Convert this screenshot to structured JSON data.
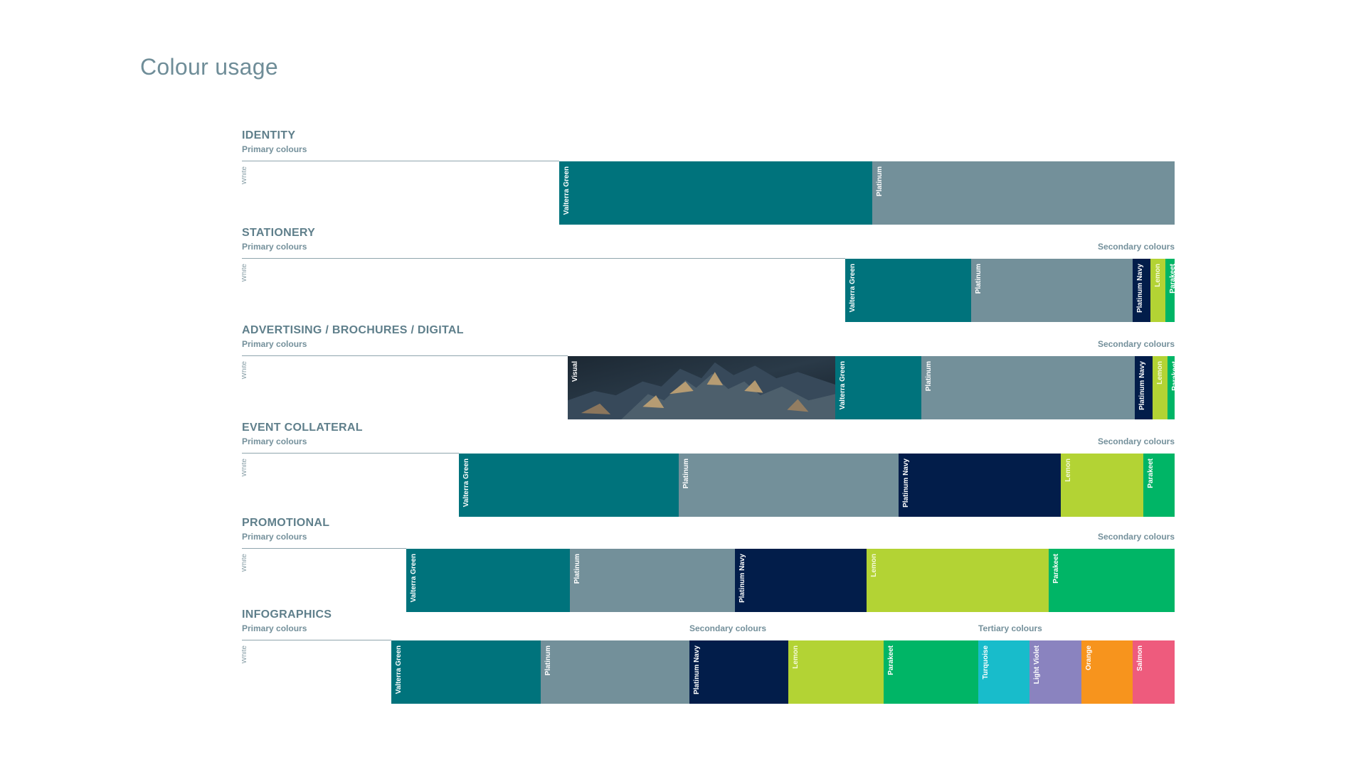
{
  "title": "Colour usage",
  "colors": {
    "white": "#ffffff",
    "valterra_green": "#00737c",
    "platinum": "#73909a",
    "platinum_navy": "#021d4a",
    "lemon": "#b3d334",
    "parakeet": "#00b566",
    "turquoise": "#18bccb",
    "light_violet": "#8a83bf",
    "orange": "#f7941d",
    "salmon": "#ee5b7d"
  },
  "sections": [
    {
      "title": "IDENTITY",
      "primary_label": "Primary colours",
      "segments": [
        {
          "label": "White",
          "color": "#ffffff",
          "share": 0.3401
        },
        {
          "label": "Valterra Green",
          "color": "#00737c",
          "share": 0.3356
        },
        {
          "label": "Platinum",
          "color": "#73909a",
          "share": 0.3243
        }
      ]
    },
    {
      "title": "STATIONERY",
      "primary_label": "Primary colours",
      "secondary_label": "Secondary colours",
      "segments": [
        {
          "label": "White",
          "color": "#ffffff",
          "share": 0.6469
        },
        {
          "label": "Valterra Green",
          "color": "#00737c",
          "share": 0.1352
        },
        {
          "label": "Platinum",
          "color": "#73909a",
          "share": 0.1731
        },
        {
          "label": "Platinum Navy",
          "color": "#021d4a",
          "share": 0.0188
        },
        {
          "label": "Lemon",
          "color": "#b3d334",
          "share": 0.0158
        },
        {
          "label": "Parakeet",
          "color": "#00b566",
          "share": 0.0158
        }
      ]
    },
    {
      "title": "ADVERTISING / BROCHURES / DIGITAL",
      "primary_label": "Primary colours",
      "secondary_label": "Secondary colours",
      "segments": [
        {
          "label": "White",
          "color": "#ffffff",
          "share": 0.3491
        },
        {
          "label": "Visual",
          "color": "#1e2a33",
          "share": 0.287,
          "image": true
        },
        {
          "label": "Valterra Green",
          "color": "#00737c",
          "share": 0.0926
        },
        {
          "label": "Platinum",
          "color": "#73909a",
          "share": 0.2284
        },
        {
          "label": "Platinum Navy",
          "color": "#021d4a",
          "share": 0.0195
        },
        {
          "label": "Lemon",
          "color": "#b3d334",
          "share": 0.0158
        },
        {
          "label": "Parakeet",
          "color": "#00b566",
          "share": 0.0158
        }
      ]
    },
    {
      "title": "EVENT COLLATERAL",
      "primary_label": "Primary colours",
      "secondary_label": "Secondary colours",
      "segments": [
        {
          "label": "White",
          "color": "#ffffff",
          "share": 0.2329
        },
        {
          "label": "Valterra Green",
          "color": "#00737c",
          "share": 0.2358
        },
        {
          "label": "Platinum",
          "color": "#73909a",
          "share": 0.2352
        },
        {
          "label": "Platinum Navy",
          "color": "#021d4a",
          "share": 0.1742
        },
        {
          "label": "Lemon",
          "color": "#b3d334",
          "share": 0.0883
        },
        {
          "label": "Parakeet",
          "color": "#00b566",
          "share": 0.0451
        }
      ]
    },
    {
      "title": "PROMOTIONAL",
      "primary_label": "Primary colours",
      "secondary_label": "Secondary colours",
      "segments": [
        {
          "label": "White",
          "color": "#ffffff",
          "share": 0.1762
        },
        {
          "label": "Valterra Green",
          "color": "#00737c",
          "share": 0.1753
        },
        {
          "label": "Platinum",
          "color": "#73909a",
          "share": 0.1772
        },
        {
          "label": "Platinum Navy",
          "color": "#021d4a",
          "share": 0.1409
        },
        {
          "label": "Lemon",
          "color": "#b3d334",
          "share": 0.1954
        },
        {
          "label": "Parakeet",
          "color": "#00b566",
          "share": 0.1474
        }
      ]
    },
    {
      "title": "INFOGRAPHICS",
      "primary_label": "Primary colours",
      "secondary_label": "Secondary colours",
      "tertiary_label": "Tertiary colours",
      "segments": [
        {
          "label": "White",
          "color": "#ffffff",
          "share": 0.1599
        },
        {
          "label": "Valterra Green",
          "color": "#00737c",
          "share": 0.1601
        },
        {
          "label": "Platinum",
          "color": "#73909a",
          "share": 0.1601
        },
        {
          "label": "Platinum Navy",
          "color": "#021d4a",
          "share": 0.1059
        },
        {
          "label": "Lemon",
          "color": "#b3d334",
          "share": 0.1021
        },
        {
          "label": "Parakeet",
          "color": "#00b566",
          "share": 0.1012
        },
        {
          "label": "Turquoise",
          "color": "#18bccb",
          "share": 0.0553
        },
        {
          "label": "Light Violet",
          "color": "#8a83bf",
          "share": 0.0553
        },
        {
          "label": "Orange",
          "color": "#f7941d",
          "share": 0.0553
        },
        {
          "label": "Salmon",
          "color": "#ee5b7d",
          "share": 0.0553
        }
      ]
    }
  ]
}
